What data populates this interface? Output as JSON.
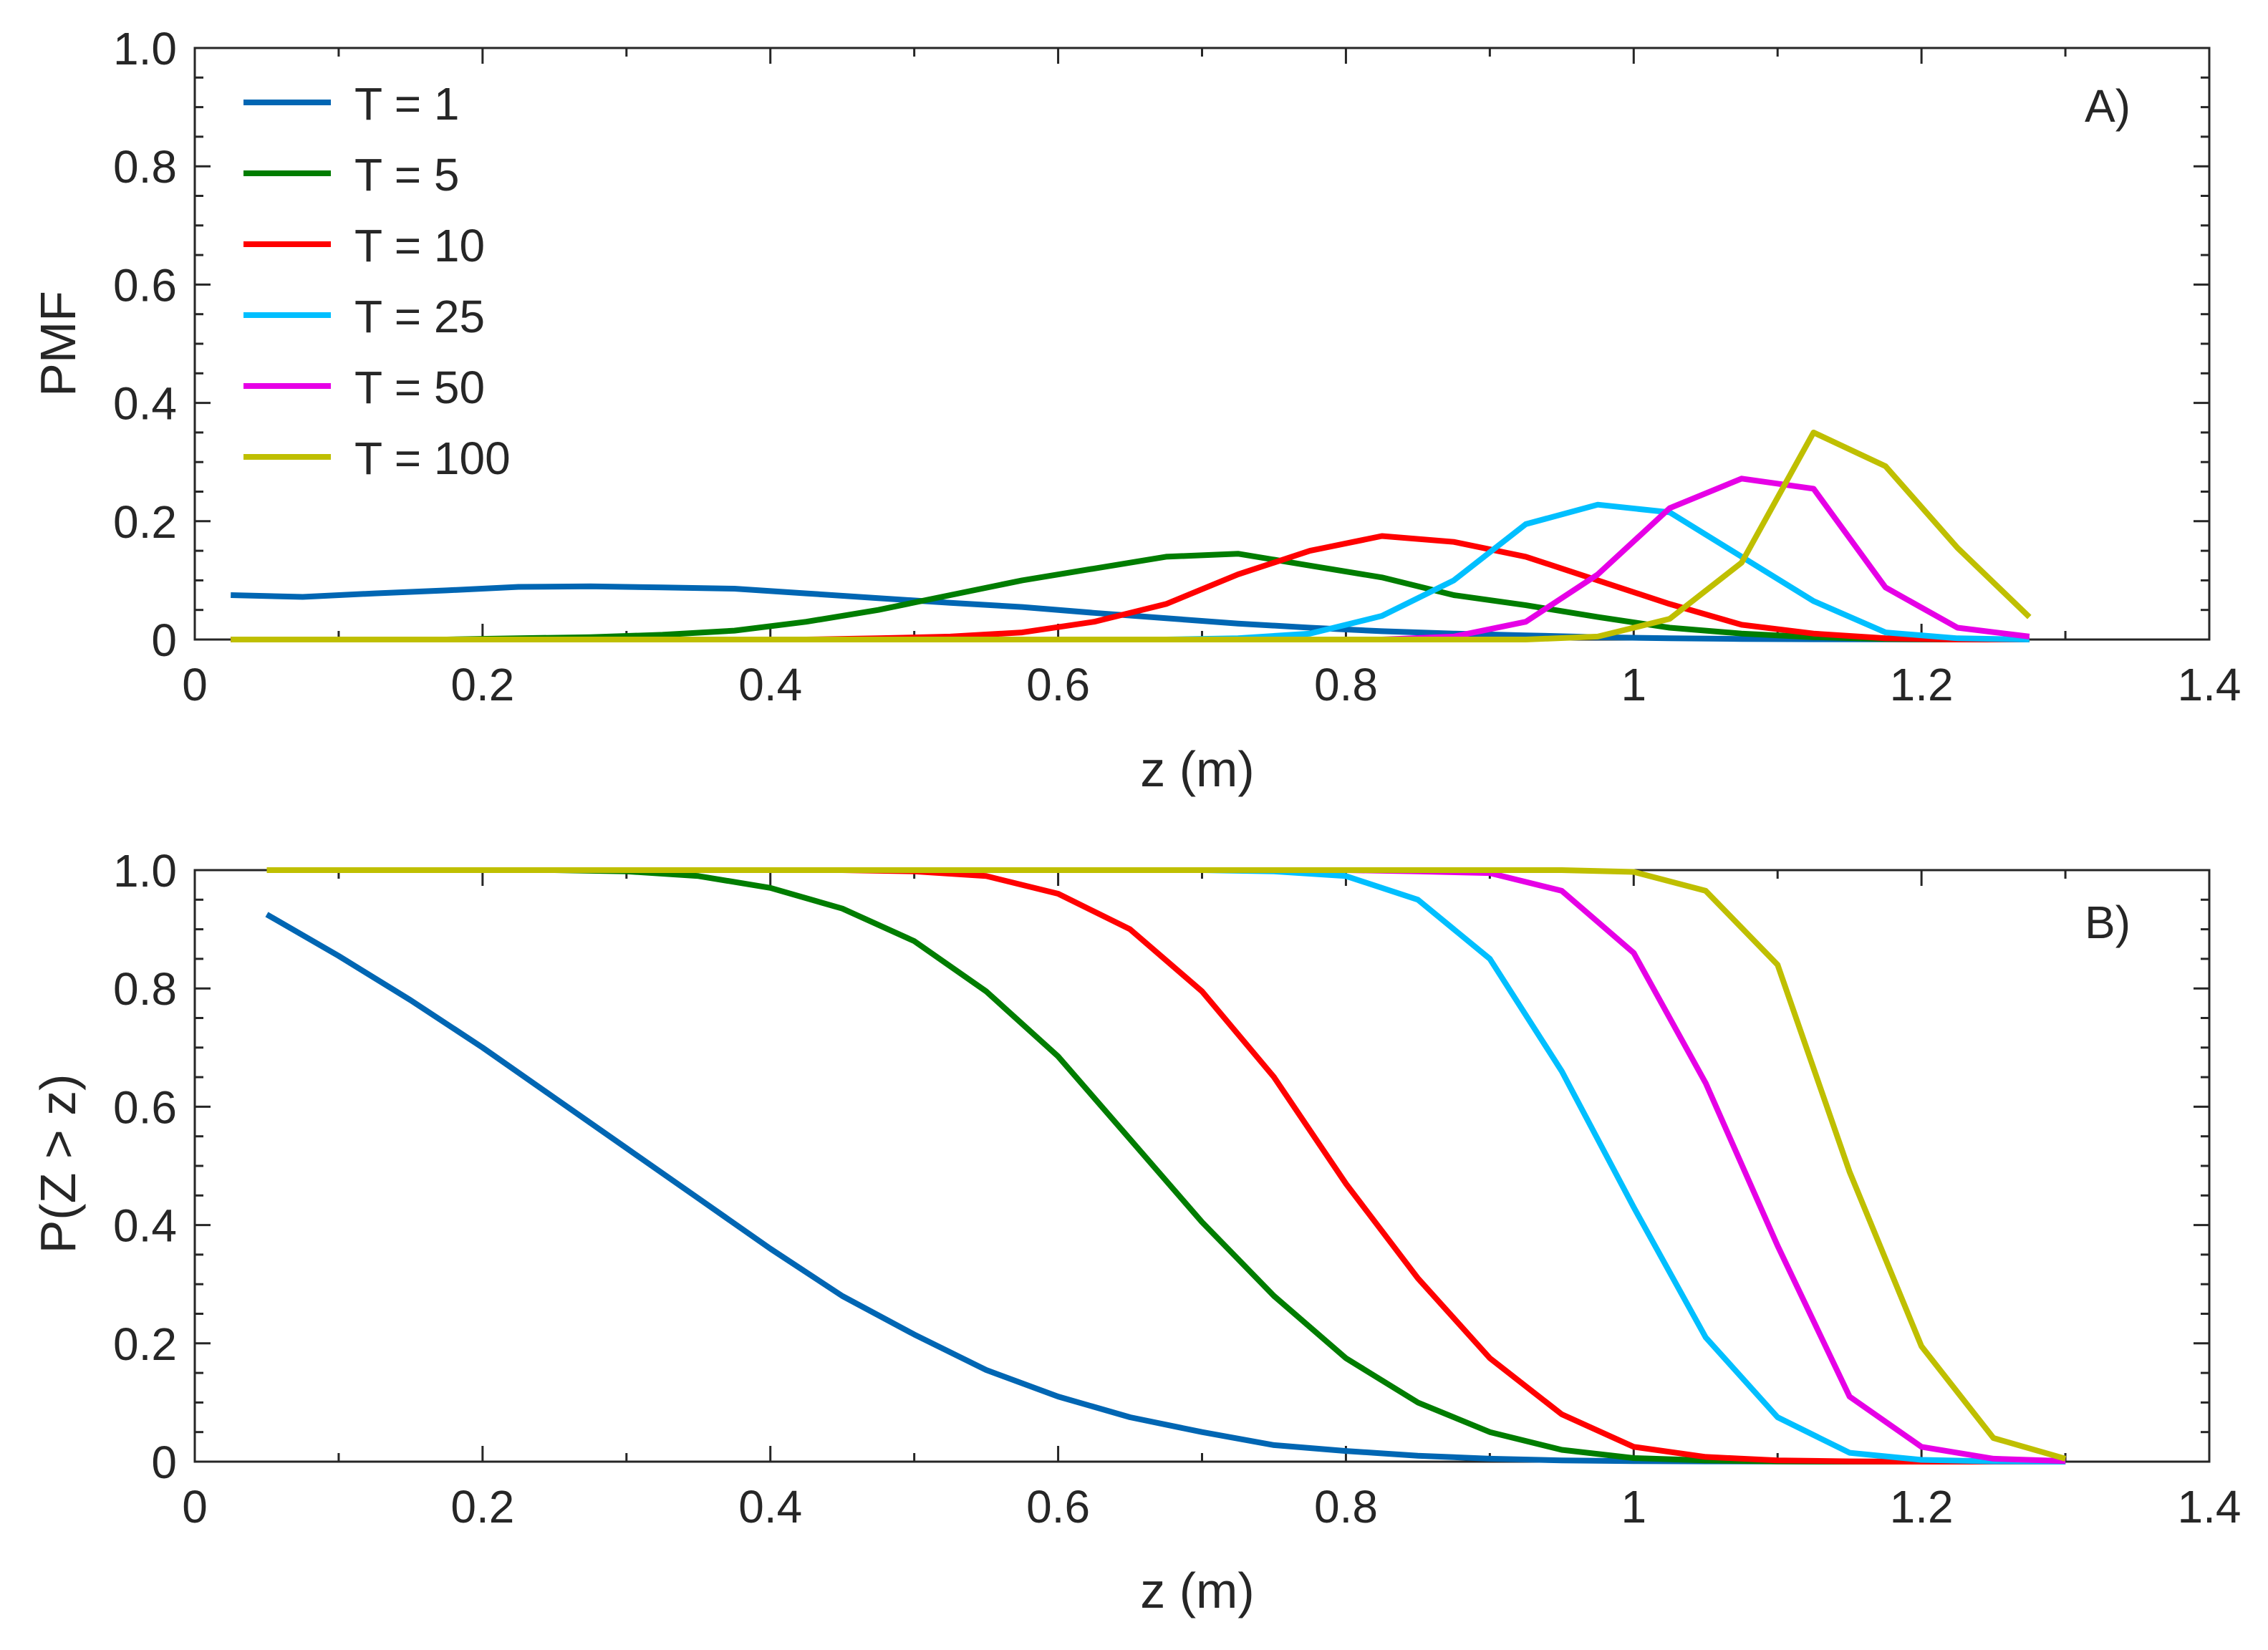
{
  "chart_data": [
    {
      "type": "line",
      "panel_label": "A)",
      "xlabel": "z (m)",
      "ylabel": "PMF",
      "xlim": [
        0,
        1.4
      ],
      "ylim": [
        0,
        1.0
      ],
      "xticks": [
        "0",
        "0.2",
        "0.4",
        "0.6",
        "0.8",
        "1",
        "1.2",
        "1.4"
      ],
      "yticks": [
        "0",
        "0.2",
        "0.4",
        "0.6",
        "0.8",
        "1.0"
      ],
      "legend_position": "top-left",
      "x": [
        0.025,
        0.075,
        0.125,
        0.175,
        0.225,
        0.275,
        0.325,
        0.375,
        0.425,
        0.475,
        0.525,
        0.575,
        0.625,
        0.675,
        0.725,
        0.775,
        0.825,
        0.875,
        0.925,
        0.975,
        1.025,
        1.075,
        1.125,
        1.175,
        1.225,
        1.275
      ],
      "series": [
        {
          "name": "T = 1",
          "color": "#0066b3",
          "values": [
            0.075,
            0.072,
            0.078,
            0.083,
            0.089,
            0.09,
            0.088,
            0.086,
            0.078,
            0.07,
            0.062,
            0.055,
            0.045,
            0.036,
            0.027,
            0.02,
            0.014,
            0.01,
            0.007,
            0.004,
            0.002,
            0.001,
            0.0005,
            0.0002,
            0.0001,
            0.0
          ]
        },
        {
          "name": "T = 5",
          "color": "#007d00",
          "values": [
            0.0,
            0.0,
            0.0,
            0.0,
            0.002,
            0.004,
            0.008,
            0.015,
            0.03,
            0.05,
            0.075,
            0.1,
            0.12,
            0.14,
            0.145,
            0.125,
            0.105,
            0.075,
            0.058,
            0.038,
            0.02,
            0.01,
            0.004,
            0.001,
            0.0,
            0.0
          ]
        },
        {
          "name": "T = 10",
          "color": "#ff0000",
          "values": [
            0.0,
            0.0,
            0.0,
            0.0,
            0.0,
            0.0,
            0.0,
            0.0,
            0.0,
            0.002,
            0.005,
            0.012,
            0.03,
            0.06,
            0.11,
            0.15,
            0.175,
            0.165,
            0.14,
            0.1,
            0.06,
            0.025,
            0.01,
            0.002,
            0.0,
            0.0
          ]
        },
        {
          "name": "T = 25",
          "color": "#00bfff",
          "values": [
            0.0,
            0.0,
            0.0,
            0.0,
            0.0,
            0.0,
            0.0,
            0.0,
            0.0,
            0.0,
            0.0,
            0.0,
            0.0,
            0.0,
            0.002,
            0.01,
            0.04,
            0.1,
            0.195,
            0.228,
            0.215,
            0.14,
            0.065,
            0.012,
            0.002,
            0.0
          ]
        },
        {
          "name": "T = 50",
          "color": "#e600e6",
          "values": [
            0.0,
            0.0,
            0.0,
            0.0,
            0.0,
            0.0,
            0.0,
            0.0,
            0.0,
            0.0,
            0.0,
            0.0,
            0.0,
            0.0,
            0.0,
            0.0,
            0.0,
            0.005,
            0.03,
            0.11,
            0.222,
            0.272,
            0.255,
            0.088,
            0.02,
            0.005
          ]
        },
        {
          "name": "T = 100",
          "color": "#bfbf00",
          "values": [
            0.0,
            0.0,
            0.0,
            0.0,
            0.0,
            0.0,
            0.0,
            0.0,
            0.0,
            0.0,
            0.0,
            0.0,
            0.0,
            0.0,
            0.0,
            0.0,
            0.0,
            0.0,
            0.0,
            0.005,
            0.035,
            0.13,
            0.35,
            0.293,
            0.155,
            0.038
          ]
        }
      ]
    },
    {
      "type": "line",
      "panel_label": "B)",
      "xlabel": "z (m)",
      "ylabel": "P(Z > z)",
      "xlim": [
        0,
        1.4
      ],
      "ylim": [
        0,
        1.0
      ],
      "xticks": [
        "0",
        "0.2",
        "0.4",
        "0.6",
        "0.8",
        "1",
        "1.2",
        "1.4"
      ],
      "yticks": [
        "0",
        "0.2",
        "0.4",
        "0.6",
        "0.8",
        "1.0"
      ],
      "x": [
        0.05,
        0.1,
        0.15,
        0.2,
        0.25,
        0.3,
        0.35,
        0.4,
        0.45,
        0.5,
        0.55,
        0.6,
        0.65,
        0.7,
        0.75,
        0.8,
        0.85,
        0.9,
        0.95,
        1.0,
        1.05,
        1.1,
        1.15,
        1.2,
        1.25,
        1.3
      ],
      "series": [
        {
          "name": "T = 1",
          "color": "#0066b3",
          "values": [
            0.925,
            0.855,
            0.78,
            0.7,
            0.615,
            0.53,
            0.445,
            0.36,
            0.28,
            0.215,
            0.155,
            0.11,
            0.075,
            0.05,
            0.028,
            0.018,
            0.01,
            0.005,
            0.002,
            0.001,
            0.0005,
            0.0002,
            0.0001,
            0.0,
            0.0,
            0.0
          ]
        },
        {
          "name": "T = 5",
          "color": "#007d00",
          "values": [
            1.0,
            1.0,
            1.0,
            1.0,
            1.0,
            0.998,
            0.99,
            0.97,
            0.935,
            0.88,
            0.795,
            0.685,
            0.545,
            0.405,
            0.28,
            0.175,
            0.1,
            0.05,
            0.02,
            0.006,
            0.002,
            0.0005,
            0.0,
            0.0,
            0.0,
            0.0
          ]
        },
        {
          "name": "T = 10",
          "color": "#ff0000",
          "values": [
            1.0,
            1.0,
            1.0,
            1.0,
            1.0,
            1.0,
            1.0,
            1.0,
            1.0,
            0.998,
            0.99,
            0.96,
            0.9,
            0.795,
            0.65,
            0.47,
            0.31,
            0.175,
            0.08,
            0.025,
            0.008,
            0.002,
            0.0005,
            0.0,
            0.0,
            0.0
          ]
        },
        {
          "name": "T = 25",
          "color": "#00bfff",
          "values": [
            1.0,
            1.0,
            1.0,
            1.0,
            1.0,
            1.0,
            1.0,
            1.0,
            1.0,
            1.0,
            1.0,
            1.0,
            1.0,
            1.0,
            0.998,
            0.99,
            0.95,
            0.85,
            0.66,
            0.43,
            0.21,
            0.075,
            0.015,
            0.003,
            0.0005,
            0.0
          ]
        },
        {
          "name": "T = 50",
          "color": "#e600e6",
          "values": [
            1.0,
            1.0,
            1.0,
            1.0,
            1.0,
            1.0,
            1.0,
            1.0,
            1.0,
            1.0,
            1.0,
            1.0,
            1.0,
            1.0,
            1.0,
            1.0,
            0.998,
            0.995,
            0.965,
            0.86,
            0.64,
            0.365,
            0.11,
            0.025,
            0.005,
            0.001
          ]
        },
        {
          "name": "T = 100",
          "color": "#bfbf00",
          "values": [
            1.0,
            1.0,
            1.0,
            1.0,
            1.0,
            1.0,
            1.0,
            1.0,
            1.0,
            1.0,
            1.0,
            1.0,
            1.0,
            1.0,
            1.0,
            1.0,
            1.0,
            1.0,
            1.0,
            0.997,
            0.965,
            0.84,
            0.49,
            0.195,
            0.04,
            0.005
          ]
        }
      ]
    }
  ]
}
